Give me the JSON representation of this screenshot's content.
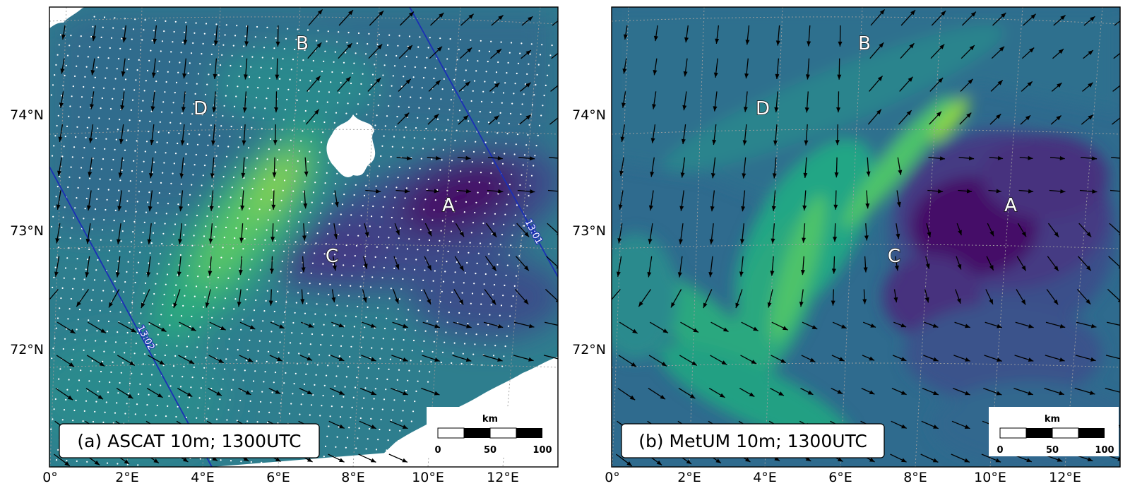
{
  "colors": {
    "very_low": "#440a68",
    "low": "#3b4f8a",
    "mid_low": "#2f6b8e",
    "mid": "#21918c",
    "mid_high": "#2aa87f",
    "high": "#5cc863",
    "very_high": "#8fd744",
    "track_line": "#1b2fb5"
  },
  "panels": [
    {
      "id": "a",
      "title": "(a) ASCAT 10m; 1300UTC",
      "lat_labels": [
        "74°N",
        "73°N",
        "72°N"
      ],
      "lon_labels": [
        "0°",
        "2°E",
        "4°E",
        "6°E",
        "8°E",
        "10°E",
        "12°E"
      ],
      "sites": [
        "B",
        "D",
        "A",
        "C"
      ],
      "track_labels": [
        "13:01",
        "13:02"
      ],
      "scalebar": {
        "unit": "km",
        "ticks": [
          "0",
          "50",
          "100"
        ]
      }
    },
    {
      "id": "b",
      "title": "(b) MetUM 10m; 1300UTC",
      "lat_labels": [
        "74°N",
        "73°N",
        "72°N"
      ],
      "lon_labels": [
        "0°",
        "2°E",
        "4°E",
        "6°E",
        "8°E",
        "10°E",
        "12°E"
      ],
      "sites": [
        "B",
        "D",
        "A",
        "C"
      ],
      "scalebar": {
        "unit": "km",
        "ticks": [
          "0",
          "50",
          "100"
        ]
      }
    }
  ]
}
